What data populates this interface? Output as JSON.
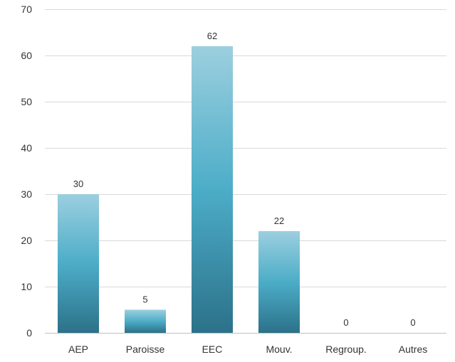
{
  "chart_data": {
    "type": "bar",
    "categories": [
      "AEP",
      "Paroisse",
      "EEC",
      "Mouv.",
      "Regroup.",
      "Autres"
    ],
    "values": [
      30,
      5,
      62,
      22,
      0,
      0
    ],
    "data_labels": [
      "30",
      "5",
      "62",
      "22",
      "0",
      "0"
    ],
    "title": "",
    "xlabel": "",
    "ylabel": "",
    "ylim": [
      0,
      70
    ],
    "yticks": [
      0,
      10,
      20,
      30,
      40,
      50,
      60,
      70
    ],
    "grid": true,
    "colors": {
      "bar_top": "#9ccfdf",
      "bar_mid": "#4cadc8",
      "bar_bottom": "#2c7189",
      "gridline": "#d9d9d9",
      "axis": "#bfbfbf",
      "text": "#333333"
    }
  }
}
